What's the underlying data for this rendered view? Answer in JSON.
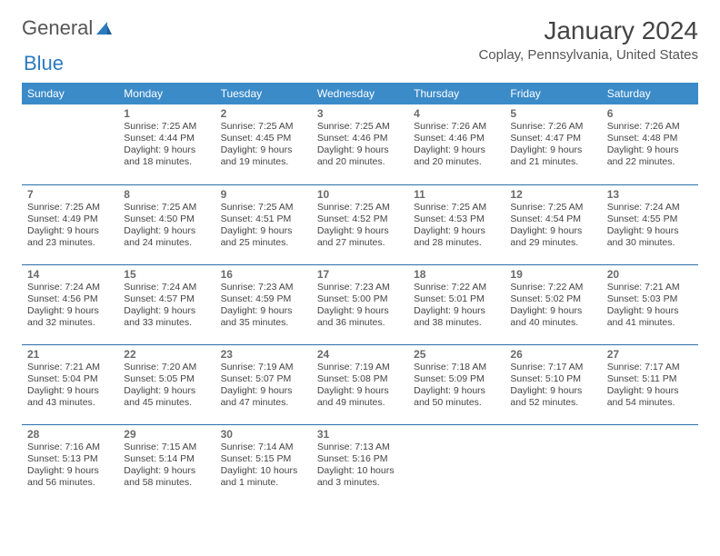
{
  "brand": {
    "part1": "General",
    "part2": "Blue"
  },
  "title": "January 2024",
  "location": "Coplay, Pennsylvania, United States",
  "colors": {
    "header_bg": "#3b8bc9",
    "header_text": "#ffffff",
    "rule": "#2b6fa8",
    "brand_blue": "#2b7bbf",
    "text": "#444444"
  },
  "weekdays": [
    "Sunday",
    "Monday",
    "Tuesday",
    "Wednesday",
    "Thursday",
    "Friday",
    "Saturday"
  ],
  "weeks": [
    [
      null,
      {
        "n": "1",
        "sr": "Sunrise: 7:25 AM",
        "ss": "Sunset: 4:44 PM",
        "d1": "Daylight: 9 hours",
        "d2": "and 18 minutes."
      },
      {
        "n": "2",
        "sr": "Sunrise: 7:25 AM",
        "ss": "Sunset: 4:45 PM",
        "d1": "Daylight: 9 hours",
        "d2": "and 19 minutes."
      },
      {
        "n": "3",
        "sr": "Sunrise: 7:25 AM",
        "ss": "Sunset: 4:46 PM",
        "d1": "Daylight: 9 hours",
        "d2": "and 20 minutes."
      },
      {
        "n": "4",
        "sr": "Sunrise: 7:26 AM",
        "ss": "Sunset: 4:46 PM",
        "d1": "Daylight: 9 hours",
        "d2": "and 20 minutes."
      },
      {
        "n": "5",
        "sr": "Sunrise: 7:26 AM",
        "ss": "Sunset: 4:47 PM",
        "d1": "Daylight: 9 hours",
        "d2": "and 21 minutes."
      },
      {
        "n": "6",
        "sr": "Sunrise: 7:26 AM",
        "ss": "Sunset: 4:48 PM",
        "d1": "Daylight: 9 hours",
        "d2": "and 22 minutes."
      }
    ],
    [
      {
        "n": "7",
        "sr": "Sunrise: 7:25 AM",
        "ss": "Sunset: 4:49 PM",
        "d1": "Daylight: 9 hours",
        "d2": "and 23 minutes."
      },
      {
        "n": "8",
        "sr": "Sunrise: 7:25 AM",
        "ss": "Sunset: 4:50 PM",
        "d1": "Daylight: 9 hours",
        "d2": "and 24 minutes."
      },
      {
        "n": "9",
        "sr": "Sunrise: 7:25 AM",
        "ss": "Sunset: 4:51 PM",
        "d1": "Daylight: 9 hours",
        "d2": "and 25 minutes."
      },
      {
        "n": "10",
        "sr": "Sunrise: 7:25 AM",
        "ss": "Sunset: 4:52 PM",
        "d1": "Daylight: 9 hours",
        "d2": "and 27 minutes."
      },
      {
        "n": "11",
        "sr": "Sunrise: 7:25 AM",
        "ss": "Sunset: 4:53 PM",
        "d1": "Daylight: 9 hours",
        "d2": "and 28 minutes."
      },
      {
        "n": "12",
        "sr": "Sunrise: 7:25 AM",
        "ss": "Sunset: 4:54 PM",
        "d1": "Daylight: 9 hours",
        "d2": "and 29 minutes."
      },
      {
        "n": "13",
        "sr": "Sunrise: 7:24 AM",
        "ss": "Sunset: 4:55 PM",
        "d1": "Daylight: 9 hours",
        "d2": "and 30 minutes."
      }
    ],
    [
      {
        "n": "14",
        "sr": "Sunrise: 7:24 AM",
        "ss": "Sunset: 4:56 PM",
        "d1": "Daylight: 9 hours",
        "d2": "and 32 minutes."
      },
      {
        "n": "15",
        "sr": "Sunrise: 7:24 AM",
        "ss": "Sunset: 4:57 PM",
        "d1": "Daylight: 9 hours",
        "d2": "and 33 minutes."
      },
      {
        "n": "16",
        "sr": "Sunrise: 7:23 AM",
        "ss": "Sunset: 4:59 PM",
        "d1": "Daylight: 9 hours",
        "d2": "and 35 minutes."
      },
      {
        "n": "17",
        "sr": "Sunrise: 7:23 AM",
        "ss": "Sunset: 5:00 PM",
        "d1": "Daylight: 9 hours",
        "d2": "and 36 minutes."
      },
      {
        "n": "18",
        "sr": "Sunrise: 7:22 AM",
        "ss": "Sunset: 5:01 PM",
        "d1": "Daylight: 9 hours",
        "d2": "and 38 minutes."
      },
      {
        "n": "19",
        "sr": "Sunrise: 7:22 AM",
        "ss": "Sunset: 5:02 PM",
        "d1": "Daylight: 9 hours",
        "d2": "and 40 minutes."
      },
      {
        "n": "20",
        "sr": "Sunrise: 7:21 AM",
        "ss": "Sunset: 5:03 PM",
        "d1": "Daylight: 9 hours",
        "d2": "and 41 minutes."
      }
    ],
    [
      {
        "n": "21",
        "sr": "Sunrise: 7:21 AM",
        "ss": "Sunset: 5:04 PM",
        "d1": "Daylight: 9 hours",
        "d2": "and 43 minutes."
      },
      {
        "n": "22",
        "sr": "Sunrise: 7:20 AM",
        "ss": "Sunset: 5:05 PM",
        "d1": "Daylight: 9 hours",
        "d2": "and 45 minutes."
      },
      {
        "n": "23",
        "sr": "Sunrise: 7:19 AM",
        "ss": "Sunset: 5:07 PM",
        "d1": "Daylight: 9 hours",
        "d2": "and 47 minutes."
      },
      {
        "n": "24",
        "sr": "Sunrise: 7:19 AM",
        "ss": "Sunset: 5:08 PM",
        "d1": "Daylight: 9 hours",
        "d2": "and 49 minutes."
      },
      {
        "n": "25",
        "sr": "Sunrise: 7:18 AM",
        "ss": "Sunset: 5:09 PM",
        "d1": "Daylight: 9 hours",
        "d2": "and 50 minutes."
      },
      {
        "n": "26",
        "sr": "Sunrise: 7:17 AM",
        "ss": "Sunset: 5:10 PM",
        "d1": "Daylight: 9 hours",
        "d2": "and 52 minutes."
      },
      {
        "n": "27",
        "sr": "Sunrise: 7:17 AM",
        "ss": "Sunset: 5:11 PM",
        "d1": "Daylight: 9 hours",
        "d2": "and 54 minutes."
      }
    ],
    [
      {
        "n": "28",
        "sr": "Sunrise: 7:16 AM",
        "ss": "Sunset: 5:13 PM",
        "d1": "Daylight: 9 hours",
        "d2": "and 56 minutes."
      },
      {
        "n": "29",
        "sr": "Sunrise: 7:15 AM",
        "ss": "Sunset: 5:14 PM",
        "d1": "Daylight: 9 hours",
        "d2": "and 58 minutes."
      },
      {
        "n": "30",
        "sr": "Sunrise: 7:14 AM",
        "ss": "Sunset: 5:15 PM",
        "d1": "Daylight: 10 hours",
        "d2": "and 1 minute."
      },
      {
        "n": "31",
        "sr": "Sunrise: 7:13 AM",
        "ss": "Sunset: 5:16 PM",
        "d1": "Daylight: 10 hours",
        "d2": "and 3 minutes."
      },
      null,
      null,
      null
    ]
  ]
}
